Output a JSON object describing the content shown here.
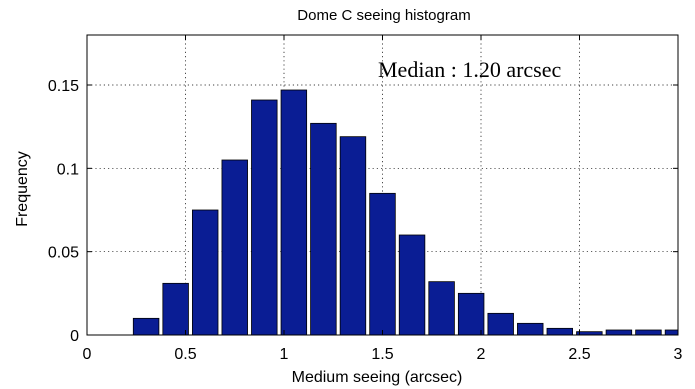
{
  "chart_data": {
    "type": "bar",
    "title": "Dome C seeing histogram",
    "xlabel": "Medium seeing (arcsec)",
    "ylabel": "Frequency",
    "xlim": [
      0,
      3
    ],
    "ylim": [
      0,
      0.18
    ],
    "xticks": [
      0,
      0.5,
      1,
      1.5,
      2,
      2.5,
      3
    ],
    "xtick_labels": [
      "0",
      "0.5",
      "1",
      "1.5",
      "2",
      "2.5",
      "3"
    ],
    "yticks": [
      0,
      0.05,
      0.1,
      0.15
    ],
    "ytick_labels": [
      "0",
      "0.05",
      "0.1",
      "0.15"
    ],
    "grid": true,
    "bar_color": "#0a1d94",
    "bar_width": 0.13,
    "x": [
      0.3,
      0.45,
      0.6,
      0.75,
      0.9,
      1.05,
      1.2,
      1.35,
      1.5,
      1.65,
      1.8,
      1.95,
      2.1,
      2.25,
      2.4,
      2.55,
      2.7,
      2.85,
      3.0
    ],
    "values": [
      0.01,
      0.031,
      0.075,
      0.105,
      0.141,
      0.147,
      0.127,
      0.119,
      0.085,
      0.06,
      0.032,
      0.025,
      0.013,
      0.007,
      0.004,
      0.002,
      0.003,
      0.003,
      0.003
    ],
    "annotation": "Median : 1.20 arcsec"
  }
}
